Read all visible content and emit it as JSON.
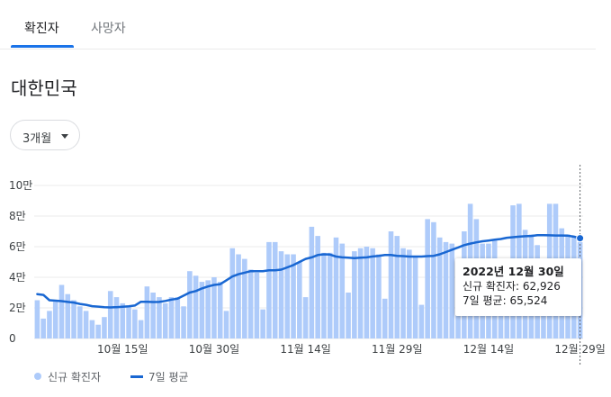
{
  "tabs": [
    {
      "label": "확진자",
      "active": true
    },
    {
      "label": "사망자",
      "active": false
    }
  ],
  "region": "대한민국",
  "range_button": {
    "label": "3개월"
  },
  "tooltip": {
    "date": "2022년 12월 30일",
    "cases_label": "신규 확진자",
    "cases_value": "62,926",
    "avg_label": "7일 평균",
    "avg_value": "65,524"
  },
  "legend": {
    "bars": "신규 확진자",
    "line": "7일 평균"
  },
  "colors": {
    "bar": "#aecbfa",
    "line": "#1967d2",
    "accent": "#1a73e8",
    "grid": "#ebebeb"
  },
  "chart_data": {
    "type": "bar",
    "ylim": [
      0,
      100000
    ],
    "y_ticks": [
      {
        "value": 0,
        "label": "0"
      },
      {
        "value": 20000,
        "label": "2만"
      },
      {
        "value": 40000,
        "label": "4만"
      },
      {
        "value": 60000,
        "label": "6만"
      },
      {
        "value": 80000,
        "label": "8만"
      },
      {
        "value": 100000,
        "label": "10만"
      }
    ],
    "x_ticks": [
      {
        "index": 14,
        "label": "10월 15일"
      },
      {
        "index": 29,
        "label": "10월 30일"
      },
      {
        "index": 44,
        "label": "11월 14일"
      },
      {
        "index": 59,
        "label": "11월 29일"
      },
      {
        "index": 74,
        "label": "12월 14일"
      },
      {
        "index": 89,
        "label": "12월 29일"
      }
    ],
    "series": [
      {
        "name": "신규 확진자",
        "type": "bar",
        "values": [
          25000,
          13000,
          18000,
          24000,
          35000,
          29000,
          25000,
          21000,
          18000,
          12000,
          9000,
          14000,
          31000,
          27000,
          23000,
          21000,
          19000,
          12000,
          34000,
          30000,
          27000,
          23000,
          27000,
          27000,
          21000,
          44000,
          41000,
          37000,
          38000,
          40000,
          37000,
          18000,
          59000,
          55000,
          52000,
          45000,
          43000,
          19000,
          63000,
          63000,
          57000,
          55000,
          55000,
          50000,
          27000,
          73000,
          67000,
          56000,
          56000,
          66000,
          62000,
          30000,
          57000,
          59000,
          60000,
          59000,
          55000,
          26000,
          70000,
          67000,
          59000,
          58000,
          54000,
          22000,
          78000,
          76000,
          66000,
          63000,
          62000,
          26000,
          70000,
          88000,
          78000,
          62000,
          62000,
          64000,
          52000,
          25000,
          87000,
          88000,
          71000,
          68000,
          61000,
          21000,
          88000,
          88000,
          72000,
          68000,
          67000,
          62926
        ]
      },
      {
        "name": "7일 평균",
        "type": "line",
        "values": [
          29000,
          28500,
          25000,
          24700,
          24400,
          23900,
          23500,
          22600,
          22000,
          21100,
          20800,
          20500,
          20300,
          20500,
          20700,
          21000,
          21500,
          24000,
          24000,
          23800,
          23900,
          24500,
          25400,
          26000,
          28000,
          30000,
          31000,
          32700,
          34000,
          35000,
          35500,
          38000,
          40500,
          42000,
          43000,
          44000,
          44000,
          44000,
          44500,
          44500,
          45000,
          46500,
          48000,
          50000,
          52000,
          53000,
          54500,
          55000,
          54800,
          53500,
          53000,
          52800,
          52500,
          52800,
          53000,
          53600,
          54000,
          54500,
          54500,
          54000,
          53800,
          53500,
          53500,
          53500,
          53800,
          54000,
          55000,
          56500,
          58000,
          59500,
          61000,
          62000,
          62800,
          63500,
          64000,
          64500,
          65000,
          65800,
          66200,
          66500,
          66800,
          67000,
          67500,
          67500,
          67400,
          67300,
          67300,
          67200,
          66500,
          65524
        ]
      }
    ]
  }
}
